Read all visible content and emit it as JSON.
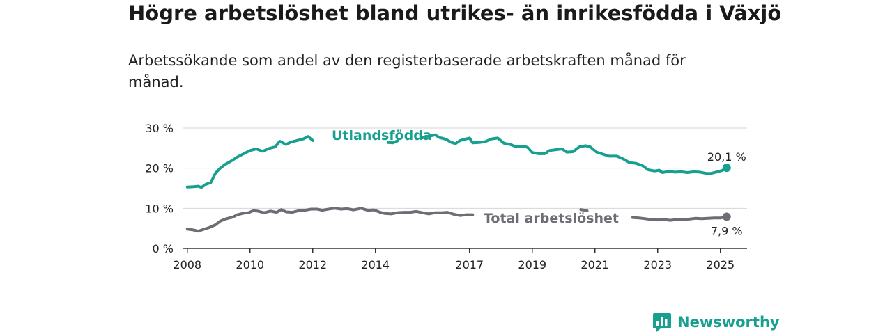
{
  "title": "Högre arbetslöshet bland utrikes- än inrikesfödda i Växjö",
  "subtitle": "Arbetssökande som andel av den registerbaserade arbetskraften månad för månad.",
  "brand": {
    "name": "Newsworthy",
    "color": "#17a08f"
  },
  "chart_data": {
    "type": "line",
    "ylim": [
      0,
      30
    ],
    "xlim": [
      2007.85,
      2025.85
    ],
    "y_ticks": [
      0,
      10,
      20,
      30
    ],
    "y_tick_labels": [
      "0 %",
      "10 %",
      "20 %",
      "30 %"
    ],
    "x_ticks": [
      2008,
      2010,
      2012,
      2014,
      2017,
      2019,
      2021,
      2023,
      2025
    ],
    "x_tick_labels": [
      "2008",
      "2010",
      "2012",
      "2014",
      "2017",
      "2019",
      "2021",
      "2023",
      "2025"
    ],
    "grid": true,
    "series": [
      {
        "name": "Utlandsfödda",
        "color": "#17a08f",
        "end_label": "20,1 %",
        "points": [
          [
            2008.0,
            15.3
          ],
          [
            2008.2,
            15.4
          ],
          [
            2008.35,
            15.5
          ],
          [
            2008.45,
            15.2
          ],
          [
            2008.6,
            16.0
          ],
          [
            2008.75,
            16.4
          ],
          [
            2008.9,
            18.8
          ],
          [
            2009.05,
            20.0
          ],
          [
            2009.2,
            20.9
          ],
          [
            2009.4,
            21.8
          ],
          [
            2009.6,
            22.8
          ],
          [
            2009.8,
            23.6
          ],
          [
            2010.0,
            24.4
          ],
          [
            2010.2,
            24.8
          ],
          [
            2010.4,
            24.2
          ],
          [
            2010.6,
            24.9
          ],
          [
            2010.8,
            25.3
          ],
          [
            2010.95,
            26.7
          ],
          [
            2011.15,
            25.9
          ],
          [
            2011.3,
            26.5
          ],
          [
            2011.5,
            26.9
          ],
          [
            2011.7,
            27.3
          ],
          [
            2011.85,
            27.9
          ],
          [
            2012.0,
            26.9
          ],
          [
            2014.4,
            26.4
          ],
          [
            2014.55,
            26.3
          ],
          [
            2014.7,
            26.8
          ],
          [
            2015.45,
            27.4
          ],
          [
            2015.6,
            27.9
          ],
          [
            2015.75,
            28.0
          ],
          [
            2015.9,
            28.3
          ],
          [
            2016.05,
            27.6
          ],
          [
            2016.25,
            27.2
          ],
          [
            2016.4,
            26.5
          ],
          [
            2016.55,
            26.1
          ],
          [
            2016.7,
            26.9
          ],
          [
            2016.85,
            27.2
          ],
          [
            2017.0,
            27.5
          ],
          [
            2017.1,
            26.3
          ],
          [
            2017.3,
            26.4
          ],
          [
            2017.5,
            26.6
          ],
          [
            2017.7,
            27.3
          ],
          [
            2017.9,
            27.5
          ],
          [
            2018.1,
            26.2
          ],
          [
            2018.3,
            25.9
          ],
          [
            2018.5,
            25.3
          ],
          [
            2018.7,
            25.5
          ],
          [
            2018.85,
            25.2
          ],
          [
            2019.0,
            23.9
          ],
          [
            2019.2,
            23.6
          ],
          [
            2019.4,
            23.6
          ],
          [
            2019.55,
            24.4
          ],
          [
            2019.75,
            24.6
          ],
          [
            2019.95,
            24.8
          ],
          [
            2020.1,
            24.0
          ],
          [
            2020.3,
            24.1
          ],
          [
            2020.5,
            25.3
          ],
          [
            2020.7,
            25.6
          ],
          [
            2020.85,
            25.3
          ],
          [
            2021.05,
            24.0
          ],
          [
            2021.25,
            23.5
          ],
          [
            2021.45,
            23.0
          ],
          [
            2021.7,
            23.0
          ],
          [
            2021.9,
            22.3
          ],
          [
            2022.1,
            21.4
          ],
          [
            2022.3,
            21.2
          ],
          [
            2022.5,
            20.7
          ],
          [
            2022.7,
            19.6
          ],
          [
            2022.9,
            19.3
          ],
          [
            2023.05,
            19.5
          ],
          [
            2023.15,
            18.9
          ],
          [
            2023.35,
            19.2
          ],
          [
            2023.55,
            19.0
          ],
          [
            2023.75,
            19.1
          ],
          [
            2023.95,
            18.9
          ],
          [
            2024.15,
            19.1
          ],
          [
            2024.35,
            19.0
          ],
          [
            2024.55,
            18.7
          ],
          [
            2024.7,
            18.7
          ],
          [
            2024.9,
            19.1
          ],
          [
            2025.05,
            19.4
          ],
          [
            2025.2,
            20.1
          ]
        ]
      },
      {
        "name": "Total arbetslöshet",
        "color": "#6e6d75",
        "end_label": "7,9 %",
        "points": [
          [
            2008.0,
            4.8
          ],
          [
            2008.2,
            4.6
          ],
          [
            2008.35,
            4.3
          ],
          [
            2008.5,
            4.7
          ],
          [
            2008.7,
            5.2
          ],
          [
            2008.9,
            5.9
          ],
          [
            2009.05,
            6.8
          ],
          [
            2009.25,
            7.4
          ],
          [
            2009.45,
            7.8
          ],
          [
            2009.6,
            8.4
          ],
          [
            2009.8,
            8.8
          ],
          [
            2009.95,
            8.9
          ],
          [
            2010.1,
            9.4
          ],
          [
            2010.25,
            9.3
          ],
          [
            2010.45,
            8.9
          ],
          [
            2010.65,
            9.3
          ],
          [
            2010.85,
            9.0
          ],
          [
            2011.0,
            9.7
          ],
          [
            2011.15,
            9.1
          ],
          [
            2011.35,
            9.0
          ],
          [
            2011.55,
            9.4
          ],
          [
            2011.75,
            9.5
          ],
          [
            2011.95,
            9.8
          ],
          [
            2012.15,
            9.8
          ],
          [
            2012.3,
            9.5
          ],
          [
            2012.5,
            9.8
          ],
          [
            2012.7,
            10.0
          ],
          [
            2012.9,
            9.8
          ],
          [
            2013.1,
            9.9
          ],
          [
            2013.3,
            9.6
          ],
          [
            2013.55,
            10.0
          ],
          [
            2013.75,
            9.5
          ],
          [
            2013.95,
            9.6
          ],
          [
            2014.15,
            9.0
          ],
          [
            2014.3,
            8.7
          ],
          [
            2014.5,
            8.6
          ],
          [
            2014.7,
            8.9
          ],
          [
            2014.9,
            9.0
          ],
          [
            2015.1,
            9.0
          ],
          [
            2015.3,
            9.2
          ],
          [
            2015.5,
            8.9
          ],
          [
            2015.7,
            8.6
          ],
          [
            2015.9,
            8.9
          ],
          [
            2016.1,
            8.9
          ],
          [
            2016.3,
            9.0
          ],
          [
            2016.5,
            8.5
          ],
          [
            2016.7,
            8.2
          ],
          [
            2016.9,
            8.4
          ],
          [
            2017.1,
            8.4
          ],
          [
            2020.55,
            9.7
          ],
          [
            2020.75,
            9.4
          ],
          [
            2022.2,
            7.7
          ],
          [
            2022.4,
            7.6
          ],
          [
            2022.6,
            7.4
          ],
          [
            2022.8,
            7.2
          ],
          [
            2023.0,
            7.1
          ],
          [
            2023.2,
            7.2
          ],
          [
            2023.4,
            7.0
          ],
          [
            2023.6,
            7.2
          ],
          [
            2023.8,
            7.2
          ],
          [
            2024.0,
            7.3
          ],
          [
            2024.2,
            7.5
          ],
          [
            2024.4,
            7.4
          ],
          [
            2024.6,
            7.5
          ],
          [
            2024.8,
            7.6
          ],
          [
            2025.0,
            7.6
          ],
          [
            2025.2,
            7.9
          ]
        ]
      }
    ]
  }
}
